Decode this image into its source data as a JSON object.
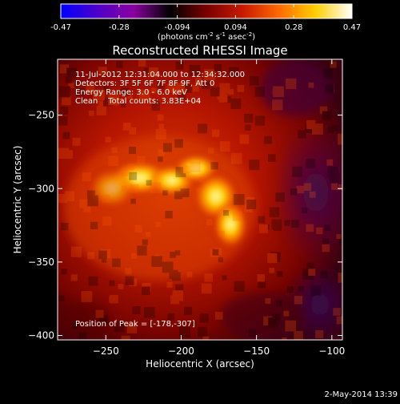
{
  "chart_data": {
    "type": "heatmap",
    "title": "Reconstructed RHESSI Image",
    "xlabel": "Heliocentric X (arcsec)",
    "ylabel": "Heliocentric Y (arcsec)",
    "xlim": [
      -282,
      -93
    ],
    "ylim": [
      -403,
      -212
    ],
    "x_ticks": [
      -250,
      -200,
      -150,
      -100
    ],
    "y_ticks": [
      -250,
      -300,
      -350,
      -400
    ],
    "annotations": [
      "11-Jul-2012 12:31:04.000 to 12:34:32.000",
      "Detectors: 3F 5F 6F 7F 8F 9F, Att 0",
      "Energy Range: 3.0 - 6.0 keV",
      "Clean    Total counts: 3.83E+04"
    ],
    "peak_label": "Position of Peak = [-178,-307]",
    "peak": [
      -178,
      -307
    ],
    "colorbar": {
      "min": -0.47,
      "max": 0.47,
      "ticks": [
        "-0.47",
        "-0.28",
        "-0.094",
        "0.094",
        "0.28",
        "0.47"
      ],
      "label": "(photons cm",
      "label_sup1": "-2",
      "label_mid": " s",
      "label_sup2": "-1",
      "label_end": " asec",
      "label_sup3": "-2",
      "label_close": ")"
    },
    "colormap": [
      "#0000ff",
      "#4d00c8",
      "#8a00a0",
      "#000000",
      "#7a0000",
      "#c81a00",
      "#ff6a00",
      "#ffd000",
      "#ffffff"
    ]
  },
  "footer": {
    "date": "2-May-2014 13:39"
  }
}
